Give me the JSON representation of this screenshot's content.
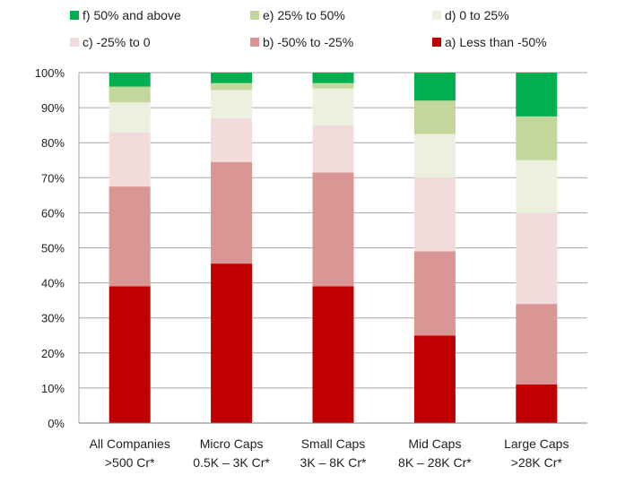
{
  "chart_data": {
    "type": "bar",
    "stacked": true,
    "percent": true,
    "title": "",
    "xlabel": "",
    "ylabel": "",
    "ylim": [
      0,
      100
    ],
    "yticks": [
      "0%",
      "10%",
      "20%",
      "30%",
      "40%",
      "50%",
      "60%",
      "70%",
      "80%",
      "90%",
      "100%"
    ],
    "grid": true,
    "legend_position": "top",
    "categories": [
      [
        "All Companies",
        ">500 Cr*"
      ],
      [
        "Micro Caps",
        "0.5K – 3K Cr*"
      ],
      [
        "Small Caps",
        "3K – 8K Cr*"
      ],
      [
        "Mid Caps",
        "8K – 28K Cr*"
      ],
      [
        "Large Caps",
        ">28K Cr*"
      ]
    ],
    "series": [
      {
        "name": "a) Less than -50%",
        "color": "#c00000",
        "values": [
          39,
          45.5,
          39,
          25,
          11
        ]
      },
      {
        "name": "b) -50% to -25%",
        "color": "#d99694",
        "values": [
          28.5,
          29,
          32.5,
          24,
          23
        ]
      },
      {
        "name": "c) -25% to 0",
        "color": "#f2dcdb",
        "values": [
          15.5,
          12.5,
          13.5,
          21,
          26
        ]
      },
      {
        "name": "d) 0 to 25%",
        "color": "#ebf1de",
        "values": [
          8.5,
          8,
          10.5,
          12.5,
          15
        ]
      },
      {
        "name": "e) 25% to 50%",
        "color": "#c3d69b",
        "values": [
          4.5,
          2,
          1.5,
          9.5,
          12.5
        ]
      },
      {
        "name": "f) 50% and above",
        "color": "#00b050",
        "values": [
          4,
          3,
          3,
          8,
          12.5
        ]
      }
    ]
  }
}
